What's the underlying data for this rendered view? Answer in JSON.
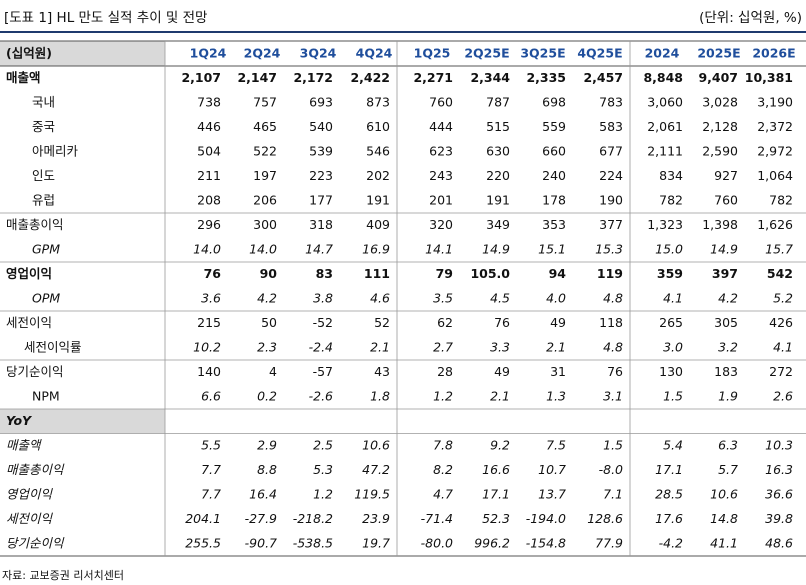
{
  "header": {
    "title": "[도표 1] HL 만도 실적 추이 및 전망",
    "unit": "(단위: 십억원, %)"
  },
  "table": {
    "header": {
      "label": "(십억원)",
      "columns": [
        "1Q24",
        "2Q24",
        "3Q24",
        "4Q24",
        "1Q25",
        "2Q25E",
        "3Q25E",
        "4Q25E",
        "2024",
        "2025E",
        "2026E"
      ]
    },
    "rows": [
      {
        "label": "매출액",
        "values": [
          "2,107",
          "2,147",
          "2,172",
          "2,422",
          "2,271",
          "2,344",
          "2,335",
          "2,457",
          "8,848",
          "9,407",
          "10,381"
        ]
      },
      {
        "label": "국내",
        "values": [
          "738",
          "757",
          "693",
          "873",
          "760",
          "787",
          "698",
          "783",
          "3,060",
          "3,028",
          "3,190"
        ]
      },
      {
        "label": "중국",
        "values": [
          "446",
          "465",
          "540",
          "610",
          "444",
          "515",
          "559",
          "583",
          "2,061",
          "2,128",
          "2,372"
        ]
      },
      {
        "label": "아메리카",
        "values": [
          "504",
          "522",
          "539",
          "546",
          "623",
          "630",
          "660",
          "677",
          "2,111",
          "2,590",
          "2,972"
        ]
      },
      {
        "label": "인도",
        "values": [
          "211",
          "197",
          "223",
          "202",
          "243",
          "220",
          "240",
          "224",
          "834",
          "927",
          "1,064"
        ]
      },
      {
        "label": "유럽",
        "values": [
          "208",
          "206",
          "177",
          "191",
          "201",
          "191",
          "178",
          "190",
          "782",
          "760",
          "782"
        ]
      },
      {
        "label": "매출총이익",
        "values": [
          "296",
          "300",
          "318",
          "409",
          "320",
          "349",
          "353",
          "377",
          "1,323",
          "1,398",
          "1,626"
        ]
      },
      {
        "label": "GPM",
        "values": [
          "14.0",
          "14.0",
          "14.7",
          "16.9",
          "14.1",
          "14.9",
          "15.1",
          "15.3",
          "15.0",
          "14.9",
          "15.7"
        ]
      },
      {
        "label": "영업이익",
        "values": [
          "76",
          "90",
          "83",
          "111",
          "79",
          "105.0",
          "94",
          "119",
          "359",
          "397",
          "542"
        ]
      },
      {
        "label": "OPM",
        "values": [
          "3.6",
          "4.2",
          "3.8",
          "4.6",
          "3.5",
          "4.5",
          "4.0",
          "4.8",
          "4.1",
          "4.2",
          "5.2"
        ]
      },
      {
        "label": "세전이익",
        "values": [
          "215",
          "50",
          "-52",
          "52",
          "62",
          "76",
          "49",
          "118",
          "265",
          "305",
          "426"
        ]
      },
      {
        "label": "세전이익률",
        "values": [
          "10.2",
          "2.3",
          "-2.4",
          "2.1",
          "2.7",
          "3.3",
          "2.1",
          "4.8",
          "3.0",
          "3.2",
          "4.1"
        ]
      },
      {
        "label": "당기순이익",
        "values": [
          "140",
          "4",
          "-57",
          "43",
          "28",
          "49",
          "31",
          "76",
          "130",
          "183",
          "272"
        ]
      },
      {
        "label": "NPM",
        "values": [
          "6.6",
          "0.2",
          "-2.6",
          "1.8",
          "1.2",
          "2.1",
          "1.3",
          "3.1",
          "1.5",
          "1.9",
          "2.6"
        ]
      },
      {
        "label": "YoY"
      },
      {
        "label": "매출액",
        "values": [
          "5.5",
          "2.9",
          "2.5",
          "10.6",
          "7.8",
          "9.2",
          "7.5",
          "1.5",
          "5.4",
          "6.3",
          "10.3"
        ]
      },
      {
        "label": "매출총이익",
        "values": [
          "7.7",
          "8.8",
          "5.3",
          "47.2",
          "8.2",
          "16.6",
          "10.7",
          "-8.0",
          "17.1",
          "5.7",
          "16.3"
        ]
      },
      {
        "label": "영업이익",
        "values": [
          "7.7",
          "16.4",
          "1.2",
          "119.5",
          "4.7",
          "17.1",
          "13.7",
          "7.1",
          "28.5",
          "10.6",
          "36.6"
        ]
      },
      {
        "label": "세전이익",
        "values": [
          "204.1",
          "-27.9",
          "-218.2",
          "23.9",
          "-71.4",
          "52.3",
          "-194.0",
          "128.6",
          "17.6",
          "14.8",
          "39.8"
        ]
      },
      {
        "label": "당기순이익",
        "values": [
          "255.5",
          "-90.7",
          "-538.5",
          "19.7",
          "-80.0",
          "996.2",
          "-154.8",
          "77.9",
          "-4.2",
          "41.1",
          "48.6"
        ]
      }
    ]
  },
  "footer": {
    "source": "자료: 교보증권 리서치센터"
  }
}
